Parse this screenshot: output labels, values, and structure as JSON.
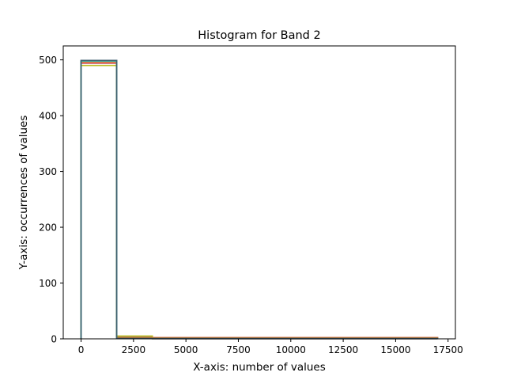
{
  "chart_data": {
    "type": "histogram",
    "title": "Histogram for Band 2",
    "xlabel": "X-axis: number of values",
    "ylabel": "Y-axis: occurrences of values",
    "xlim": [
      -850,
      17850
    ],
    "ylim": [
      0,
      525
    ],
    "xticks": [
      0,
      2500,
      5000,
      7500,
      10000,
      12500,
      15000,
      17500
    ],
    "xtick_labels": [
      "0",
      "2500",
      "5000",
      "7500",
      "10000",
      "12500",
      "15000",
      "17500"
    ],
    "yticks": [
      0,
      100,
      200,
      300,
      400,
      500
    ],
    "ytick_labels": [
      "0",
      "100",
      "200",
      "300",
      "400",
      "500"
    ],
    "grid": false,
    "histtype": "step",
    "series": [
      {
        "color": "#8c564b",
        "bins": [
          0,
          1700,
          3400,
          17000
        ],
        "counts": [
          497,
          2,
          1
        ]
      },
      {
        "color": "#e377c2",
        "bins": [
          0,
          1700,
          3400,
          17000
        ],
        "counts": [
          496,
          3,
          1
        ]
      },
      {
        "color": "#7f7f7f",
        "bins": [
          0,
          1700,
          3400,
          17000
        ],
        "counts": [
          499,
          1,
          0
        ]
      },
      {
        "color": "#d62728",
        "bins": [
          0,
          1700,
          3400,
          17000
        ],
        "counts": [
          494,
          4,
          2
        ]
      },
      {
        "color": "#9467bd",
        "bins": [
          0,
          1700,
          3400,
          17000
        ],
        "counts": [
          495,
          3,
          2
        ]
      },
      {
        "color": "#bcbd22",
        "bins": [
          0,
          1700,
          3400,
          17000
        ],
        "counts": [
          490,
          5,
          1
        ]
      },
      {
        "color": "#1f77b4",
        "bins": [
          0,
          1700,
          3400,
          17000
        ],
        "counts": [
          498,
          1,
          1
        ]
      },
      {
        "color": "#2ca02c",
        "bins": [
          0,
          1700,
          3400,
          17000
        ],
        "counts": [
          497,
          2,
          1
        ]
      },
      {
        "color": "#ff7f0e",
        "bins": [
          0,
          1700,
          3400,
          17000
        ],
        "counts": [
          496,
          2,
          2
        ]
      },
      {
        "color": "#17becf",
        "bins": [
          0,
          1700,
          3400,
          17000
        ],
        "counts": [
          498,
          1,
          1
        ]
      },
      {
        "color": "#3f5f6f",
        "bins": [
          0,
          1700,
          3400,
          17000
        ],
        "counts": [
          499,
          1,
          1
        ]
      }
    ]
  }
}
